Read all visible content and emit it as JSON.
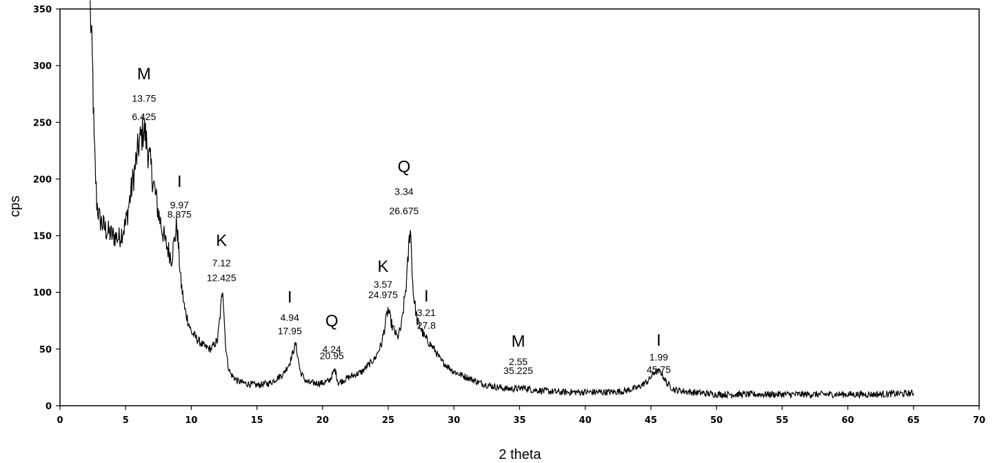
{
  "chart_data": {
    "type": "line",
    "xlabel": "2 theta",
    "ylabel": "cps",
    "xlim": [
      0,
      70
    ],
    "ylim": [
      0,
      350
    ],
    "x_ticks": [
      "0",
      "5",
      "10",
      "15",
      "20",
      "25",
      "30",
      "35",
      "40",
      "45",
      "50",
      "55",
      "60",
      "65",
      "70"
    ],
    "y_ticks": [
      "0",
      "50",
      "100",
      "150",
      "200",
      "250",
      "300",
      "350"
    ],
    "grid": false,
    "legend": "none",
    "line_color": "#000000",
    "series": [
      {
        "x": [
          2.3,
          2.5,
          2.6,
          2.8,
          3.0,
          3.5,
          4.0,
          4.5,
          5.0,
          5.5,
          6.0,
          6.4,
          7.0,
          7.5,
          8.0,
          8.5,
          8.9,
          9.2,
          9.5,
          10.0,
          10.5,
          11.0,
          11.5,
          12.0,
          12.2,
          12.4,
          12.6,
          12.8,
          13.0,
          13.5,
          14.0,
          15.0,
          16.0,
          17.0,
          17.5,
          17.95,
          18.3,
          18.7,
          19.0,
          19.5,
          20.0,
          20.5,
          20.95,
          21.2,
          21.5,
          22.0,
          23.0,
          24.0,
          24.5,
          24.98,
          25.3,
          25.7,
          26.0,
          26.4,
          26.675,
          26.9,
          27.2,
          27.8,
          28.5,
          29.0,
          30.0,
          31.0,
          32.0,
          33.0,
          34.0,
          35.0,
          35.225,
          36.0,
          37.0,
          38.0,
          40.0,
          42.0,
          43.0,
          44.0,
          44.8,
          45.3,
          45.75,
          46.2,
          46.8,
          48.0,
          50.0,
          52.0,
          55.0,
          58.0,
          60.0,
          62.0,
          65.0
        ],
        "y": [
          350,
          290,
          230,
          180,
          165,
          155,
          150,
          148,
          160,
          195,
          230,
          245,
          205,
          170,
          145,
          130,
          160,
          110,
          85,
          65,
          58,
          52,
          50,
          58,
          80,
          105,
          55,
          35,
          28,
          22,
          20,
          18,
          20,
          28,
          38,
          55,
          30,
          22,
          20,
          20,
          20,
          22,
          32,
          20,
          22,
          25,
          30,
          42,
          55,
          85,
          70,
          60,
          70,
          110,
          160,
          100,
          75,
          60,
          50,
          40,
          30,
          25,
          20,
          17,
          15,
          15,
          16,
          14,
          13,
          12,
          12,
          12,
          13,
          16,
          22,
          30,
          30,
          20,
          14,
          12,
          10,
          10,
          10,
          10,
          10,
          10,
          11
        ]
      }
    ],
    "annotations": [
      {
        "letter": "M",
        "d": "13.75",
        "two_theta": "6.425",
        "x": 6.4,
        "y_letter": 288,
        "y_d": 268,
        "y_t": 252
      },
      {
        "letter": "I",
        "d": "9.97",
        "two_theta": "8.875",
        "x": 9.1,
        "y_letter": 193,
        "y_d": 174,
        "y_t": 166
      },
      {
        "letter": "K",
        "d": "7.12",
        "two_theta": "12.425",
        "x": 12.3,
        "y_letter": 141,
        "y_d": 123,
        "y_t": 110
      },
      {
        "letter": "I",
        "d": "4.94",
        "two_theta": "17.95",
        "x": 17.5,
        "y_letter": 91,
        "y_d": 75,
        "y_t": 63
      },
      {
        "letter": "Q",
        "d": "4.24",
        "two_theta": "20.95",
        "x": 20.7,
        "y_letter": 70,
        "y_d": 47,
        "y_t": 41
      },
      {
        "letter": "K",
        "d": "3.57",
        "two_theta": "24.975",
        "x": 24.6,
        "y_letter": 118,
        "y_d": 104,
        "y_t": 95
      },
      {
        "letter": "Q",
        "d": "3.34",
        "two_theta": "26.675",
        "x": 26.2,
        "y_letter": 206,
        "y_d": 186,
        "y_t": 169
      },
      {
        "letter": "I",
        "d": "3.21",
        "two_theta": "27.8",
        "x": 27.9,
        "y_letter": 92,
        "y_d": 79,
        "y_t": 68
      },
      {
        "letter": "M",
        "d": "2.55",
        "two_theta": "35.225",
        "x": 34.9,
        "y_letter": 52,
        "y_d": 36,
        "y_t": 28
      },
      {
        "letter": "I",
        "d": "1.99",
        "two_theta": "45.75",
        "x": 45.6,
        "y_letter": 53,
        "y_d": 40,
        "y_t": 29
      }
    ]
  }
}
